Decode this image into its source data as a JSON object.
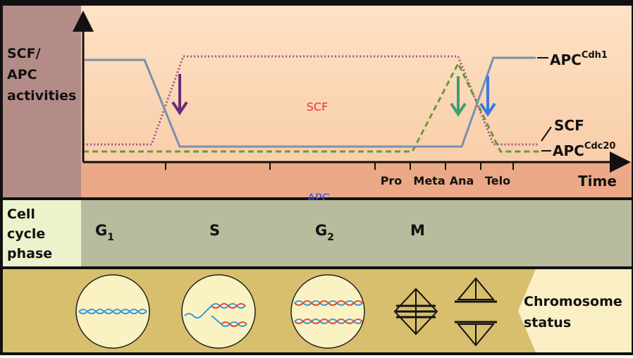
{
  "graph": {
    "y_label": [
      "SCF/",
      "APC",
      "activities"
    ],
    "x_label": "Time",
    "x_ticks": [
      "Pro",
      "Meta",
      "Ana",
      "Telo"
    ],
    "curve_labels": [
      {
        "base": "APC",
        "sup": "Cdh1"
      },
      {
        "base": "SCF"
      },
      {
        "base": "APC",
        "sup": "Cdc20"
      }
    ],
    "annotations": [
      "SCF",
      "APC"
    ]
  },
  "phase_row": {
    "label": [
      "Cell",
      "cycle",
      "phase"
    ],
    "phases": [
      {
        "base": "G",
        "sub": "1"
      },
      {
        "base": "S"
      },
      {
        "base": "G",
        "sub": "2"
      },
      {
        "base": "M"
      }
    ]
  },
  "chromosome_row": {
    "label": [
      "Chromosome",
      "status"
    ]
  }
}
